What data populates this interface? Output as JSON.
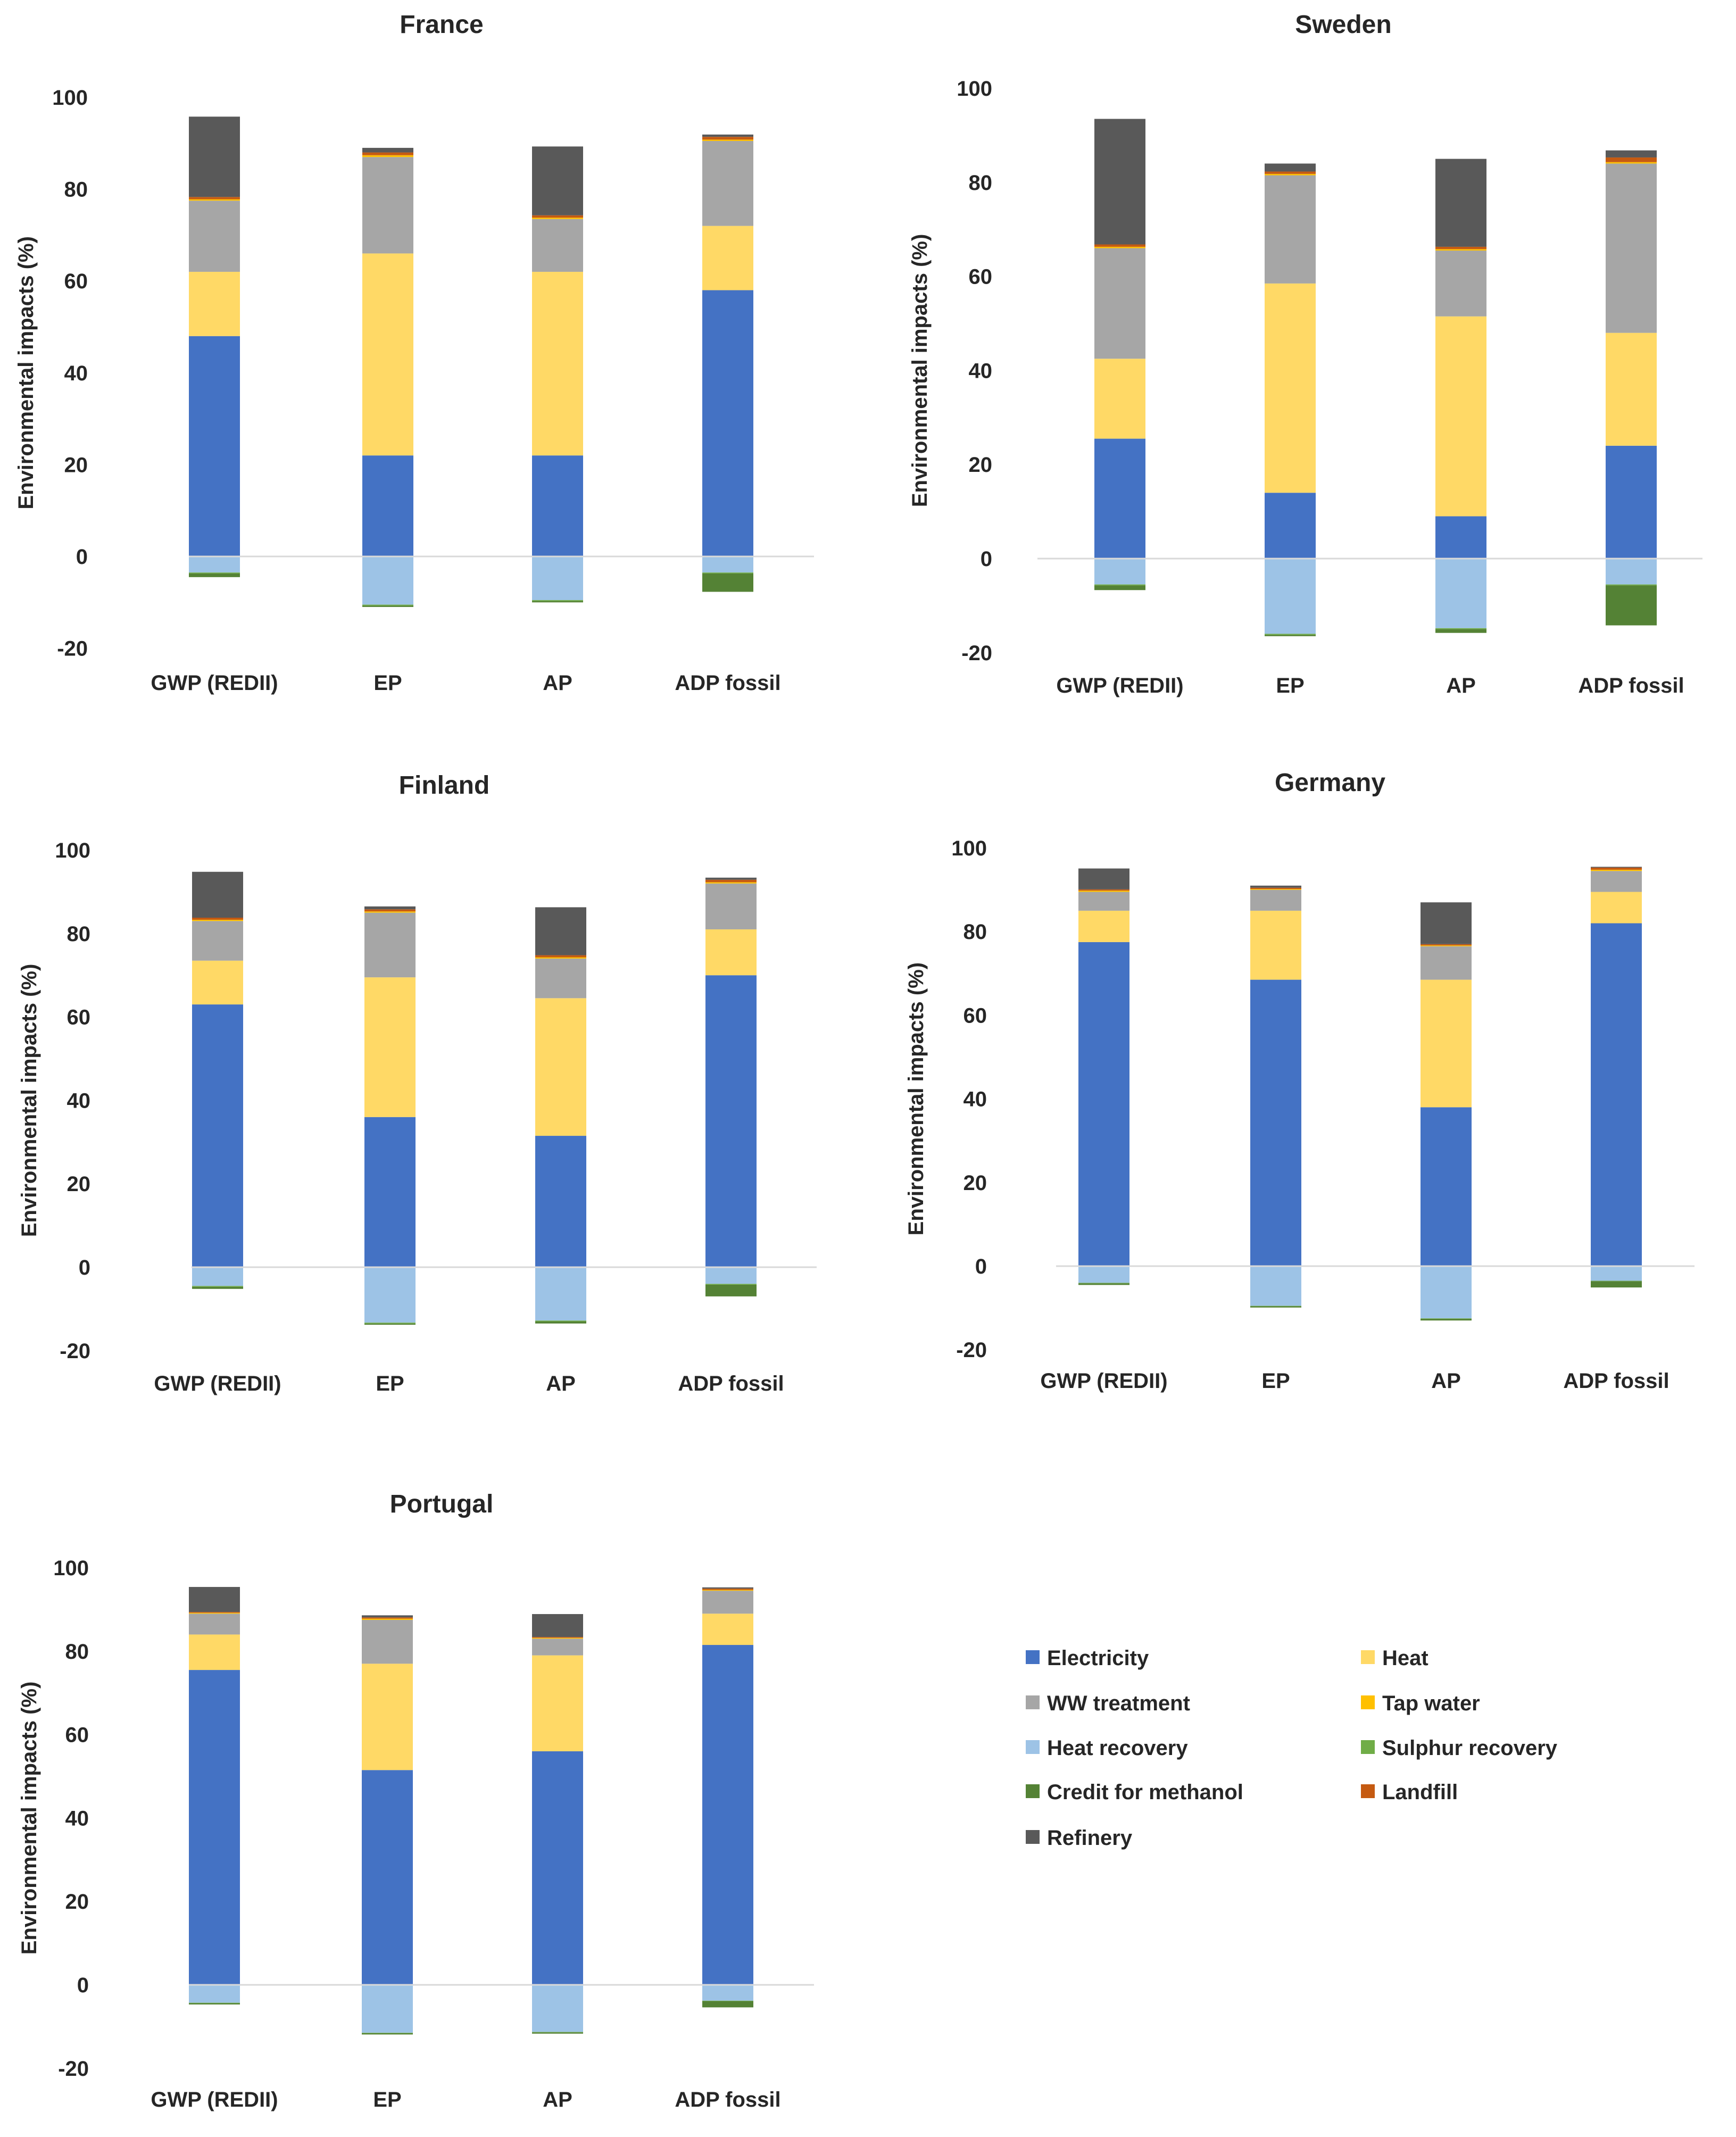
{
  "colors": {
    "Electricity": "#4472c4",
    "Heat": "#ffd966",
    "WW treatment": "#a6a6a6",
    "Tap water": "#ffc000",
    "Heat recovery": "#9dc3e6",
    "Sulphur recovery": "#70ad47",
    "Credit for methanol": "#548235",
    "Landfill": "#c55a11",
    "Refinery": "#595959"
  },
  "legend": {
    "items": [
      "Electricity",
      "Heat",
      "WW treatment",
      "Tap water",
      "Heat recovery",
      "Sulphur recovery",
      "Credit for methanol",
      "Landfill",
      "Refinery"
    ]
  },
  "chart_data": [
    {
      "type": "bar",
      "title": "France",
      "ylabel": "Environmental impacts (%)",
      "ylim": [
        -20,
        100
      ],
      "yticks": [
        "-20",
        "0",
        "20",
        "40",
        "60",
        "80",
        "100"
      ],
      "categories": [
        "GWP (REDII)",
        "EP",
        "AP",
        "ADP fossil"
      ],
      "series": [
        {
          "name": "Electricity",
          "values": [
            48,
            22,
            22,
            58
          ]
        },
        {
          "name": "Heat",
          "values": [
            14,
            44,
            40,
            14
          ]
        },
        {
          "name": "WW treatment",
          "values": [
            15.5,
            21,
            11.5,
            18.5
          ]
        },
        {
          "name": "Tap water",
          "values": [
            0.3,
            0.4,
            0.3,
            0.3
          ]
        },
        {
          "name": "Landfill",
          "values": [
            0.5,
            0.6,
            0.5,
            0.6
          ]
        },
        {
          "name": "Refinery",
          "values": [
            17.5,
            1,
            15,
            0.5
          ]
        },
        {
          "name": "Heat recovery",
          "values": [
            -3.5,
            -10.5,
            -9.5,
            -3.5
          ]
        },
        {
          "name": "Sulphur recovery",
          "values": [
            -0.2,
            -0.2,
            -0.2,
            -0.2
          ]
        },
        {
          "name": "Credit for methanol",
          "values": [
            -0.8,
            -0.3,
            -0.3,
            -4
          ]
        }
      ]
    },
    {
      "type": "bar",
      "title": "Sweden",
      "ylabel": "Environmental impacts (%)",
      "ylim": [
        -20,
        100
      ],
      "yticks": [
        "-20",
        "0",
        "20",
        "40",
        "60",
        "80",
        "100"
      ],
      "categories": [
        "GWP (REDII)",
        "EP",
        "AP",
        "ADP fossil"
      ],
      "series": [
        {
          "name": "Electricity",
          "values": [
            25.5,
            14,
            9,
            24
          ]
        },
        {
          "name": "Heat",
          "values": [
            17,
            44.5,
            42.5,
            24
          ]
        },
        {
          "name": "WW treatment",
          "values": [
            23.5,
            23,
            14,
            36
          ]
        },
        {
          "name": "Tap water",
          "values": [
            0.3,
            0.3,
            0.3,
            0.3
          ]
        },
        {
          "name": "Landfill",
          "values": [
            0.5,
            0.5,
            0.5,
            1
          ]
        },
        {
          "name": "Refinery",
          "values": [
            26.7,
            1.7,
            18.7,
            1.5
          ]
        },
        {
          "name": "Heat recovery",
          "values": [
            -5.5,
            -16,
            -14.8,
            -5.5
          ]
        },
        {
          "name": "Sulphur recovery",
          "values": [
            -0.2,
            -0.2,
            -0.2,
            -0.2
          ]
        },
        {
          "name": "Credit for methanol",
          "values": [
            -1,
            -0.3,
            -0.8,
            -8.5
          ]
        }
      ]
    },
    {
      "type": "bar",
      "title": "Finland",
      "ylabel": "Environmental impacts (%)",
      "ylim": [
        -20,
        100
      ],
      "yticks": [
        "-20",
        "0",
        "20",
        "40",
        "60",
        "80",
        "100"
      ],
      "categories": [
        "GWP (REDII)",
        "EP",
        "AP",
        "ADP fossil"
      ],
      "series": [
        {
          "name": "Electricity",
          "values": [
            63,
            36,
            31.5,
            70
          ]
        },
        {
          "name": "Heat",
          "values": [
            10.5,
            33.5,
            33,
            11
          ]
        },
        {
          "name": "WW treatment",
          "values": [
            9.5,
            15.5,
            9.5,
            11
          ]
        },
        {
          "name": "Tap water",
          "values": [
            0.3,
            0.3,
            0.3,
            0.3
          ]
        },
        {
          "name": "Landfill",
          "values": [
            0.5,
            0.5,
            0.5,
            0.6
          ]
        },
        {
          "name": "Refinery",
          "values": [
            11,
            0.7,
            11.5,
            0.5
          ]
        },
        {
          "name": "Heat recovery",
          "values": [
            -4.5,
            -13.3,
            -12.8,
            -4
          ]
        },
        {
          "name": "Sulphur recovery",
          "values": [
            -0.2,
            -0.2,
            -0.2,
            -0.2
          ]
        },
        {
          "name": "Credit for methanol",
          "values": [
            -0.5,
            -0.3,
            -0.5,
            -2.8
          ]
        }
      ]
    },
    {
      "type": "bar",
      "title": "Germany",
      "ylabel": "Environmental impacts (%)",
      "ylim": [
        -20,
        100
      ],
      "yticks": [
        "-20",
        "0",
        "20",
        "40",
        "60",
        "80",
        "100"
      ],
      "categories": [
        "GWP (REDII)",
        "EP",
        "AP",
        "ADP fossil"
      ],
      "series": [
        {
          "name": "Electricity",
          "values": [
            77.5,
            68.5,
            38,
            82
          ]
        },
        {
          "name": "Heat",
          "values": [
            7.5,
            16.5,
            30.5,
            7.5
          ]
        },
        {
          "name": "WW treatment",
          "values": [
            4.5,
            5,
            8,
            5
          ]
        },
        {
          "name": "Tap water",
          "values": [
            0.3,
            0.2,
            0.2,
            0.3
          ]
        },
        {
          "name": "Landfill",
          "values": [
            0.3,
            0.3,
            0.3,
            0.5
          ]
        },
        {
          "name": "Refinery",
          "values": [
            5,
            0.5,
            10,
            0.2
          ]
        },
        {
          "name": "Heat recovery",
          "values": [
            -4,
            -9.5,
            -12.5,
            -3.5
          ]
        },
        {
          "name": "Sulphur recovery",
          "values": [
            -0.1,
            -0.1,
            -0.1,
            -0.1
          ]
        },
        {
          "name": "Credit for methanol",
          "values": [
            -0.4,
            -0.3,
            -0.4,
            -1.5
          ]
        }
      ]
    },
    {
      "type": "bar",
      "title": "Portugal",
      "ylabel": "Environmental impacts (%)",
      "ylim": [
        -20,
        100
      ],
      "yticks": [
        "-20",
        "0",
        "20",
        "40",
        "60",
        "80",
        "100"
      ],
      "categories": [
        "GWP (REDII)",
        "EP",
        "AP",
        "ADP fossil"
      ],
      "series": [
        {
          "name": "Electricity",
          "values": [
            75.5,
            51.5,
            56,
            81.5
          ]
        },
        {
          "name": "Heat",
          "values": [
            8.5,
            25.5,
            23,
            7.5
          ]
        },
        {
          "name": "WW treatment",
          "values": [
            5,
            10.5,
            4,
            5.5
          ]
        },
        {
          "name": "Tap water",
          "values": [
            0.2,
            0.3,
            0.2,
            0.2
          ]
        },
        {
          "name": "Landfill",
          "values": [
            0.2,
            0.3,
            0.2,
            0.3
          ]
        },
        {
          "name": "Refinery",
          "values": [
            6,
            0.5,
            5.5,
            0.3
          ]
        },
        {
          "name": "Heat recovery",
          "values": [
            -4.3,
            -11.5,
            -11.3,
            -3.8
          ]
        },
        {
          "name": "Sulphur recovery",
          "values": [
            -0.1,
            -0.1,
            -0.1,
            -0.1
          ]
        },
        {
          "name": "Credit for methanol",
          "values": [
            -0.3,
            -0.3,
            -0.3,
            -1.5
          ]
        }
      ]
    }
  ]
}
